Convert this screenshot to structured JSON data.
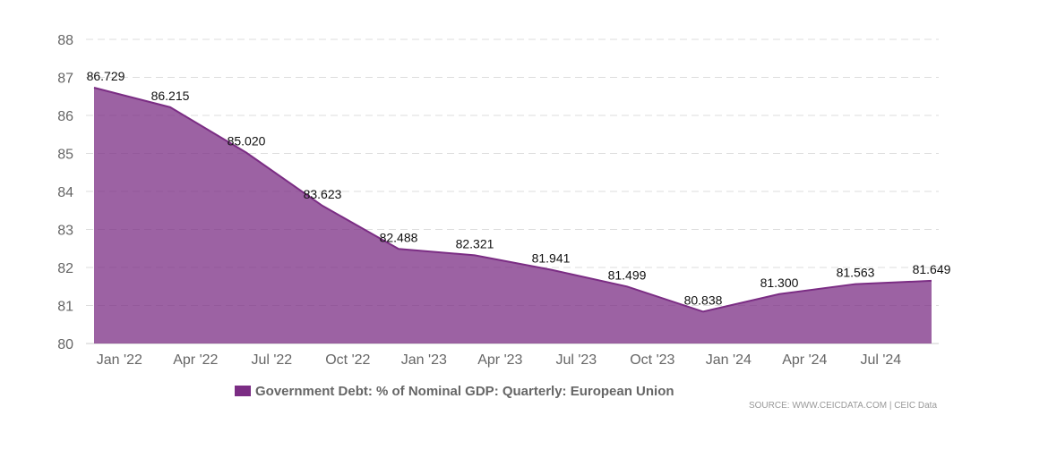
{
  "chart_data": {
    "type": "area",
    "title": "",
    "xlabel": "",
    "ylabel": "",
    "categories": [
      "Jan '22",
      "Apr '22",
      "Jul '22",
      "Oct '22",
      "Jan '23",
      "Apr '23",
      "Jul '23",
      "Oct '23",
      "Jan '24",
      "Apr '24",
      "Jul '24"
    ],
    "yticks": [
      "80",
      "81",
      "82",
      "83",
      "84",
      "85",
      "86",
      "87",
      "88"
    ],
    "ylim": [
      80,
      88
    ],
    "grid": true,
    "legend_position": "bottom",
    "series": [
      {
        "name": "Government Debt: % of Nominal GDP: Quarterly: European Union",
        "color": "#7b2d84",
        "points": [
          {
            "x": "2021-12",
            "y": 86.729,
            "label": "86.729"
          },
          {
            "x": "2022-03",
            "y": 86.215,
            "label": "86.215"
          },
          {
            "x": "2022-06",
            "y": 85.02,
            "label": "85.020"
          },
          {
            "x": "2022-09",
            "y": 83.623,
            "label": "83.623"
          },
          {
            "x": "2022-12",
            "y": 82.488,
            "label": "82.488"
          },
          {
            "x": "2023-03",
            "y": 82.321,
            "label": "82.321"
          },
          {
            "x": "2023-06",
            "y": 81.941,
            "label": "81.941"
          },
          {
            "x": "2023-09",
            "y": 81.499,
            "label": "81.499"
          },
          {
            "x": "2023-12",
            "y": 80.838,
            "label": "80.838"
          },
          {
            "x": "2024-03",
            "y": 81.3,
            "label": "81.300"
          },
          {
            "x": "2024-06",
            "y": 81.563,
            "label": "81.563"
          },
          {
            "x": "2024-09",
            "y": 81.649,
            "label": "81.649"
          }
        ]
      }
    ]
  },
  "legend": {
    "label": "Government Debt: % of Nominal GDP: Quarterly: European Union",
    "color": "#7b2d84"
  },
  "source": "SOURCE: WWW.CEICDATA.COM | CEIC Data"
}
